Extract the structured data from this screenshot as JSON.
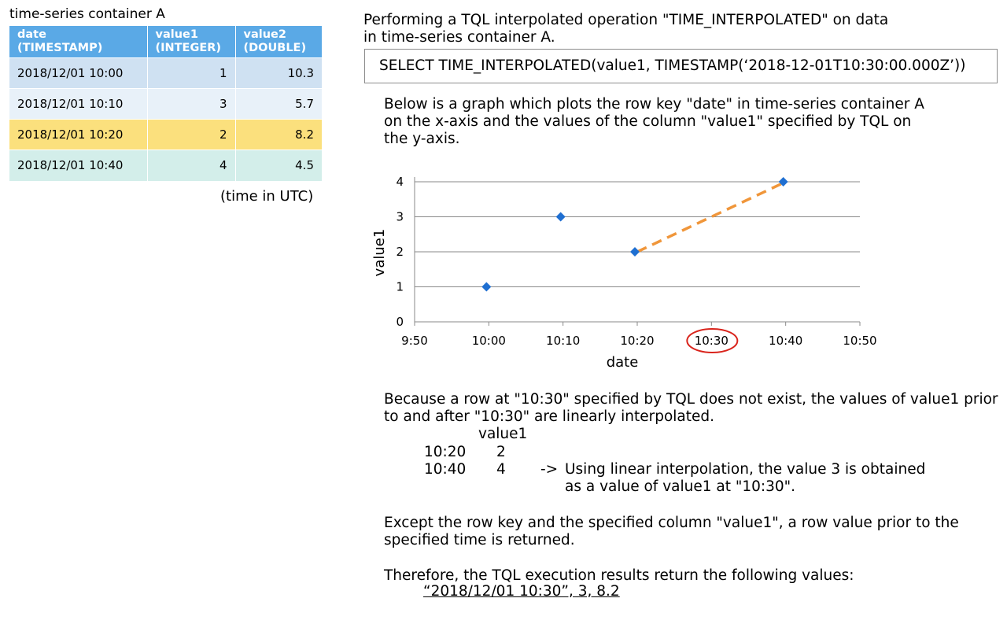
{
  "container_title": "time-series container A",
  "table": {
    "headers": [
      {
        "line1": "date",
        "line2": "(TIMESTAMP)"
      },
      {
        "line1": "value1",
        "line2": "(INTEGER)"
      },
      {
        "line1": "value2",
        "line2": "(DOUBLE)"
      }
    ],
    "rows": [
      {
        "date": "2018/12/01 10:00",
        "value1": "1",
        "value2": "10.3"
      },
      {
        "date": "2018/12/01 10:10",
        "value1": "3",
        "value2": "5.7"
      },
      {
        "date": "2018/12/01 10:20",
        "value1": "2",
        "value2": "8.2"
      },
      {
        "date": "2018/12/01 10:40",
        "value1": "4",
        "value2": "4.5"
      }
    ],
    "note": "(time in UTC)"
  },
  "intro": {
    "line1": "Performing a TQL interpolated operation \"TIME_INTERPOLATED\" on data",
    "line2": "in time-series container A."
  },
  "query": "SELECT TIME_INTERPOLATED(value1, TIMESTAMP(‘2018-12-01T10:30:00.000Z’))",
  "graph_desc": {
    "line1": "Below is a graph which plots the row key \"date\" in time-series container A",
    "line2": "on the x-axis and the values of the column \"value1\" specified by TQL on",
    "line3": "the y-axis."
  },
  "chart_data": {
    "type": "scatter",
    "xlabel": "date",
    "ylabel": "value1",
    "x_ticks": [
      "9:50",
      "10:00",
      "10:10",
      "10:20",
      "10:30",
      "10:40",
      "10:50"
    ],
    "y_ticks": [
      "0",
      "1",
      "2",
      "3",
      "4"
    ],
    "ylim": [
      0,
      4
    ],
    "points": [
      {
        "x": "10:00",
        "y": 1
      },
      {
        "x": "10:10",
        "y": 3
      },
      {
        "x": "10:20",
        "y": 2
      },
      {
        "x": "10:40",
        "y": 4
      }
    ],
    "interpolation_segment": {
      "from": "10:20",
      "to": "10:40"
    },
    "highlighted_tick": "10:30",
    "point_color": "#1f6fd1",
    "interp_color": "#f0963a",
    "highlight_color": "#d9241c"
  },
  "explanation": {
    "line1": "Because a row at \"10:30\" specified by TQL does not exist, the values of value1 prior",
    "line2": "to and after \"10:30\" are linearly interpolated.",
    "col_header": "value1",
    "rows": [
      {
        "time": "10:20",
        "value": "2"
      },
      {
        "time": "10:40",
        "value": "4"
      }
    ],
    "arrow": "->",
    "arrow_line1": "Using linear interpolation, the value 3 is obtained",
    "arrow_line2": "as a value of value1 at \"10:30\"."
  },
  "except_text": {
    "line1": "Except the row key and the specified column \"value1\", a row value prior to the",
    "line2": "specified time is returned."
  },
  "therefore": "Therefore, the TQL execution results return the following values:",
  "result": "“2018/12/01 10:30”, 3, 8.2"
}
